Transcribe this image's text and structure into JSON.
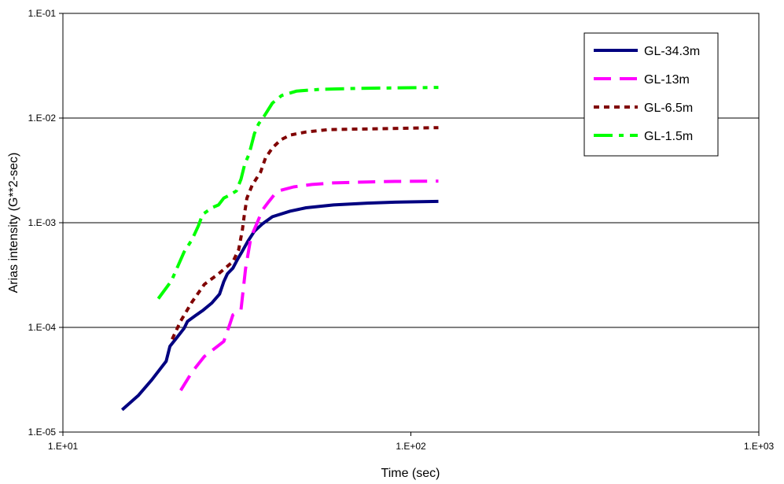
{
  "chart_data": {
    "type": "line",
    "title": "",
    "xlabel": "Time (sec)",
    "ylabel": "Arias intensity (G**2-sec)",
    "xscale": "log",
    "yscale": "log",
    "xlim": [
      10,
      1000
    ],
    "ylim": [
      1e-05,
      0.1
    ],
    "x_ticks": [
      "1.E+01",
      "1.E+02",
      "1.E+03"
    ],
    "y_ticks": [
      "1.E-05",
      "1.E-04",
      "1.E-03",
      "1.E-02",
      "1.E-01"
    ],
    "grid": "horizontal major",
    "legend_position": "top-right",
    "series": [
      {
        "name": "GL-34.3m",
        "color": "#000080",
        "style": "solid",
        "points": [
          [
            14.8,
            1.63e-05
          ],
          [
            16.5,
            2.25e-05
          ],
          [
            18,
            3.15e-05
          ],
          [
            19.8,
            4.75e-05
          ],
          [
            20.3,
            6.6e-05
          ],
          [
            21.2,
            7.9e-05
          ],
          [
            22.3,
            9.8e-05
          ],
          [
            22.8,
            0.000114
          ],
          [
            24,
            0.000129
          ],
          [
            25.3,
            0.000146
          ],
          [
            26.8,
            0.000171
          ],
          [
            28.2,
            0.000208
          ],
          [
            29,
            0.000274
          ],
          [
            29.7,
            0.000325
          ],
          [
            30.8,
            0.000368
          ],
          [
            31.8,
            0.00045
          ],
          [
            32.6,
            0.000518
          ],
          [
            34,
            0.000665
          ],
          [
            35.5,
            0.00083
          ],
          [
            37.5,
            0.00098
          ],
          [
            40,
            0.00114
          ],
          [
            45,
            0.00129
          ],
          [
            50,
            0.00139
          ],
          [
            60,
            0.00148
          ],
          [
            75,
            0.00154
          ],
          [
            90,
            0.00157
          ],
          [
            120,
            0.0016
          ]
        ]
      },
      {
        "name": "GL-13m",
        "color": "#ff00ff",
        "style": "long dash",
        "points": [
          [
            21.8,
            2.5e-05
          ],
          [
            23.5,
            3.75e-05
          ],
          [
            25.5,
            5.28e-05
          ],
          [
            29,
            7.35e-05
          ],
          [
            30.2,
            0.000108
          ],
          [
            30.8,
            0.000132
          ],
          [
            32.5,
            0.000148
          ],
          [
            33.5,
            0.000365
          ],
          [
            34.7,
            0.000728
          ],
          [
            36,
            0.000965
          ],
          [
            37.5,
            0.00133
          ],
          [
            39,
            0.00158
          ],
          [
            40.5,
            0.00185
          ],
          [
            42,
            0.00203
          ],
          [
            46,
            0.0022
          ],
          [
            52,
            0.00232
          ],
          [
            60,
            0.0024
          ],
          [
            75,
            0.00245
          ],
          [
            90,
            0.00248
          ],
          [
            120,
            0.0025
          ]
        ]
      },
      {
        "name": "GL-6.5m",
        "color": "#800000",
        "style": "short dash",
        "points": [
          [
            20.6,
            7.7e-05
          ],
          [
            21.8,
            0.000115
          ],
          [
            23.5,
            0.000175
          ],
          [
            25.5,
            0.000258
          ],
          [
            28,
            0.000325
          ],
          [
            30.8,
            0.000425
          ],
          [
            32,
            0.000552
          ],
          [
            32.8,
            0.000862
          ],
          [
            33.2,
            0.00117
          ],
          [
            33.8,
            0.00172
          ],
          [
            35,
            0.00229
          ],
          [
            37,
            0.00305
          ],
          [
            38.2,
            0.00415
          ],
          [
            40,
            0.00519
          ],
          [
            42.3,
            0.0062
          ],
          [
            45,
            0.00688
          ],
          [
            50,
            0.00736
          ],
          [
            58,
            0.00775
          ],
          [
            80,
            0.0079
          ],
          [
            120,
            0.0081
          ]
        ]
      },
      {
        "name": "GL-1.5m",
        "color": "#00ff00",
        "style": "long dash dot",
        "points": [
          [
            18.8,
            0.000188
          ],
          [
            20.5,
            0.000278
          ],
          [
            22.3,
            0.000525
          ],
          [
            23.5,
            0.00069
          ],
          [
            24.5,
            0.00093
          ],
          [
            25.2,
            0.0012
          ],
          [
            26.8,
            0.00139
          ],
          [
            28,
            0.00148
          ],
          [
            29,
            0.00172
          ],
          [
            30,
            0.00182
          ],
          [
            31.5,
            0.00201
          ],
          [
            32.5,
            0.00261
          ],
          [
            33.3,
            0.00362
          ],
          [
            34.3,
            0.00456
          ],
          [
            35.5,
            0.00708
          ],
          [
            36.5,
            0.00878
          ],
          [
            38,
            0.0106
          ],
          [
            40,
            0.0139
          ],
          [
            42.5,
            0.0164
          ],
          [
            47,
            0.0181
          ],
          [
            55,
            0.0188
          ],
          [
            70,
            0.0192
          ],
          [
            90,
            0.0194
          ],
          [
            120,
            0.0196
          ]
        ]
      }
    ]
  }
}
